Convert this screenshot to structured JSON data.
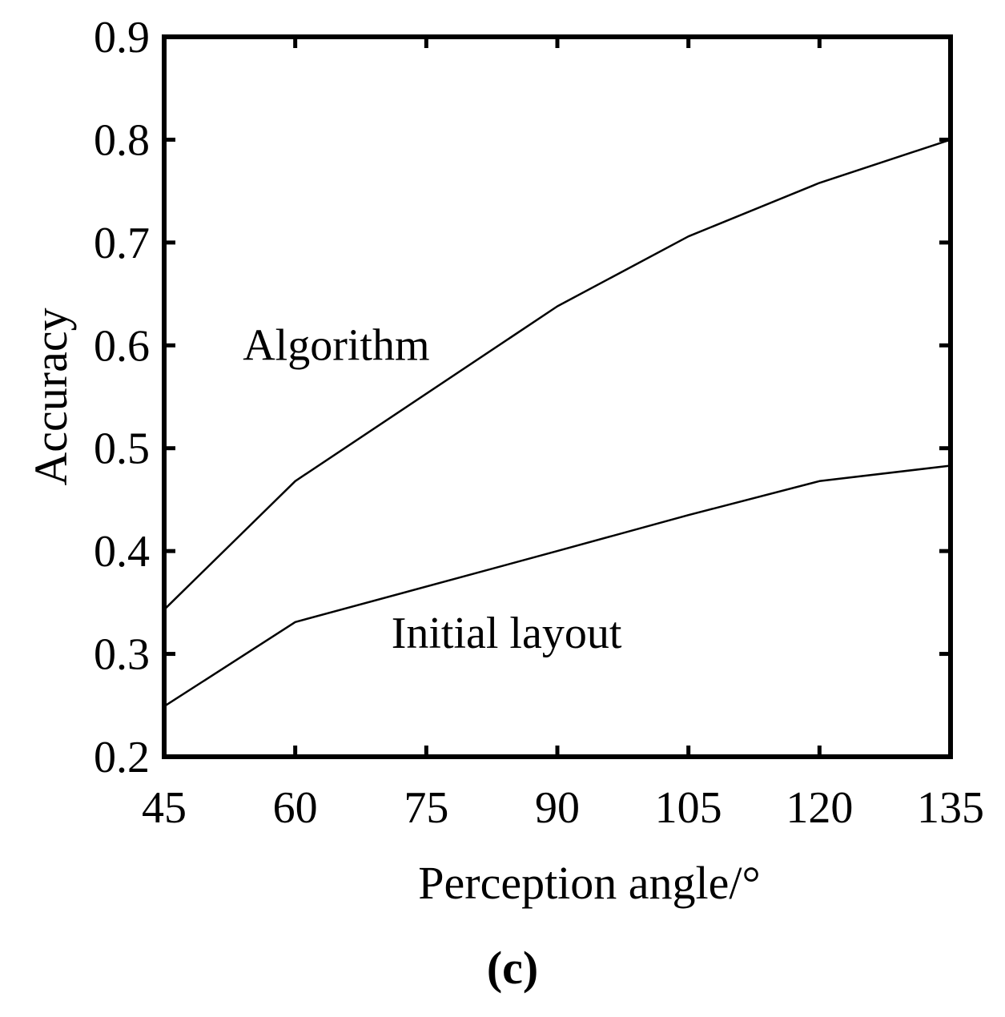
{
  "chart_data": {
    "type": "line",
    "title": "",
    "xlabel": "Perception angle/°",
    "ylabel": "Accuracy",
    "xlim": [
      45,
      135
    ],
    "ylim": [
      0.2,
      0.9
    ],
    "x_ticks": [
      45,
      60,
      75,
      90,
      105,
      120,
      135
    ],
    "x_tick_labels": [
      "45",
      "60",
      "75",
      "90",
      "105",
      "120",
      "135"
    ],
    "y_ticks": [
      0.2,
      0.3,
      0.4,
      0.5,
      0.6,
      0.7,
      0.8,
      0.9
    ],
    "y_tick_labels": [
      "0.2",
      "0.3",
      "0.4",
      "0.5",
      "0.6",
      "0.7",
      "0.8",
      "0.9"
    ],
    "grid": false,
    "x": [
      45,
      60,
      90,
      105,
      120,
      135
    ],
    "series": [
      {
        "name": "Algorithm",
        "values": [
          0.343,
          0.468,
          0.638,
          0.706,
          0.758,
          0.8
        ],
        "label_x": 54,
        "label_y": 0.6
      },
      {
        "name": "Initial layout",
        "values": [
          0.249,
          0.331,
          0.4,
          0.435,
          0.468,
          0.483
        ],
        "label_x": 71,
        "label_y": 0.32
      }
    ],
    "line_color": "#000000",
    "panel_label": "(c)"
  }
}
